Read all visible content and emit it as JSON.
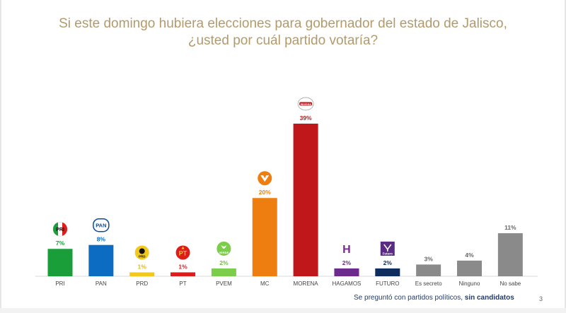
{
  "title_line1": "Si este domingo hubiera elecciones para gobernador del estado de Jalisco,",
  "title_line2": "¿usted por cuál partido votaría?",
  "footnote_prefix": "Se preguntó con partidos políticos, ",
  "footnote_bold": "sin candidatos",
  "page_number": "3",
  "chart_data": {
    "type": "bar",
    "categories": [
      "PRI",
      "PAN",
      "PRD",
      "PT",
      "PVEM",
      "MC",
      "MORENA",
      "HAGAMOS",
      "FUTURO",
      "Es secreto",
      "Ninguno",
      "No sabe"
    ],
    "values": [
      7,
      8,
      1,
      1,
      2,
      20,
      39,
      2,
      2,
      3,
      4,
      11
    ],
    "value_labels": [
      "7%",
      "8%",
      "1%",
      "1%",
      "2%",
      "20%",
      "39%",
      "2%",
      "2%",
      "3%",
      "4%",
      "11%"
    ],
    "colors": [
      "#1a9e3a",
      "#0b6cc1",
      "#f2c81c",
      "#dd1c1c",
      "#7dcd4c",
      "#ef7e10",
      "#c0171a",
      "#6b2a8c",
      "#0e2c5c",
      "#8a8a8a",
      "#8a8a8a",
      "#8a8a8a"
    ],
    "label_colors": [
      "#1a9e3a",
      "#0b6cc1",
      "#e8b800",
      "#dd1c1c",
      "#6cc23a",
      "#ef7e10",
      "#c0171a",
      "#6b2a8c",
      "#0e2c5c",
      "#666666",
      "#666666",
      "#666666"
    ],
    "logo_icons": [
      "pri-logo-icon",
      "pan-logo-icon",
      "prd-logo-icon",
      "pt-logo-icon",
      "pvem-logo-icon",
      "mc-logo-icon",
      "morena-logo-icon",
      "hagamos-logo-icon",
      "futuro-logo-icon",
      "",
      "",
      ""
    ],
    "logo_texts": [
      "PRI",
      "PAN",
      "PRD",
      "PT",
      "VERDE",
      "",
      "morena",
      "H",
      "Futuro",
      "",
      "",
      ""
    ],
    "ylim": [
      0,
      40
    ],
    "grid": false,
    "legend": "none"
  }
}
